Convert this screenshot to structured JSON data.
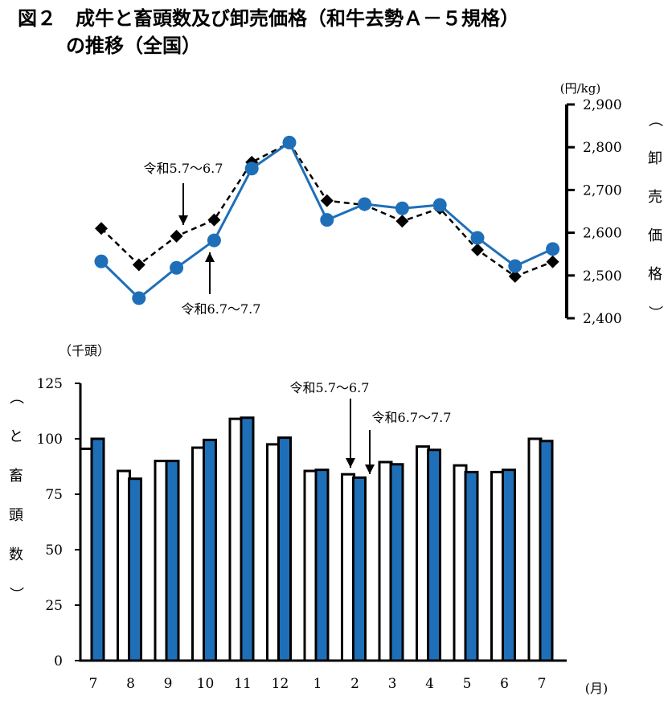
{
  "title": {
    "line1": "図２　成牛と畜頭数及び卸売価格（和牛去勢Ａ－５規格）",
    "line2": "の推移（全国）"
  },
  "chart_data": [
    {
      "type": "line",
      "unit_label": "(円/kg)",
      "ylabel": "（卸売価格）",
      "ylim": [
        2400,
        2900
      ],
      "yticks": [
        "2,400",
        "2,500",
        "2,600",
        "2,700",
        "2,800",
        "2,900"
      ],
      "ytick_values": [
        2400,
        2500,
        2600,
        2700,
        2800,
        2900
      ],
      "categories": [
        "7",
        "8",
        "9",
        "10",
        "11",
        "12",
        "1",
        "2",
        "3",
        "4",
        "5",
        "6",
        "7"
      ],
      "series": [
        {
          "name": "令和5.7～6.7",
          "style": "dashed",
          "marker": "diamond",
          "color": "#000000",
          "values": [
            2610,
            2525,
            2592,
            2630,
            2765,
            2810,
            2675,
            2665,
            2627,
            2657,
            2560,
            2498,
            2532
          ]
        },
        {
          "name": "令和6.7～7.7",
          "style": "solid",
          "marker": "circle",
          "color": "#1f6fb8",
          "values": [
            2533,
            2447,
            2518,
            2582,
            2750,
            2811,
            2630,
            2667,
            2657,
            2665,
            2588,
            2522,
            2562
          ]
        }
      ],
      "annotations": [
        {
          "text": "令和5.7～6.7",
          "arrow": "down",
          "target_series": 0,
          "target_index": 2
        },
        {
          "text": "令和6.7～7.7",
          "arrow": "up",
          "target_series": 1,
          "target_index": 3
        }
      ]
    },
    {
      "type": "bar",
      "unit_label": "（千頭）",
      "ylabel": "（と畜頭数）",
      "xunit": "(月)",
      "ylim": [
        0,
        125
      ],
      "yticks": [
        "0",
        "25",
        "50",
        "75",
        "100",
        "125"
      ],
      "ytick_values": [
        0,
        25,
        50,
        75,
        100,
        125
      ],
      "categories": [
        "7",
        "8",
        "9",
        "10",
        "11",
        "12",
        "1",
        "2",
        "3",
        "4",
        "5",
        "6",
        "7"
      ],
      "series": [
        {
          "name": "令和5.7～6.7",
          "color": "#ffffff",
          "edge": "#000000",
          "values": [
            95.5,
            85.5,
            90,
            96,
            109,
            97.5,
            85.5,
            84,
            89.5,
            96.5,
            88,
            85,
            100
          ]
        },
        {
          "name": "令和6.7～7.7",
          "color": "#1f6fb8",
          "edge": "#000000",
          "values": [
            100,
            82,
            90,
            99.5,
            109.5,
            100.5,
            86,
            82.5,
            88.5,
            95,
            85,
            86,
            99
          ]
        }
      ],
      "annotations": [
        {
          "text": "令和5.7～6.7",
          "arrow": "down",
          "target_series": 0,
          "target_index": 7
        },
        {
          "text": "令和6.7～7.7",
          "arrow": "down",
          "target_series": 1,
          "target_index": 7
        }
      ]
    }
  ]
}
